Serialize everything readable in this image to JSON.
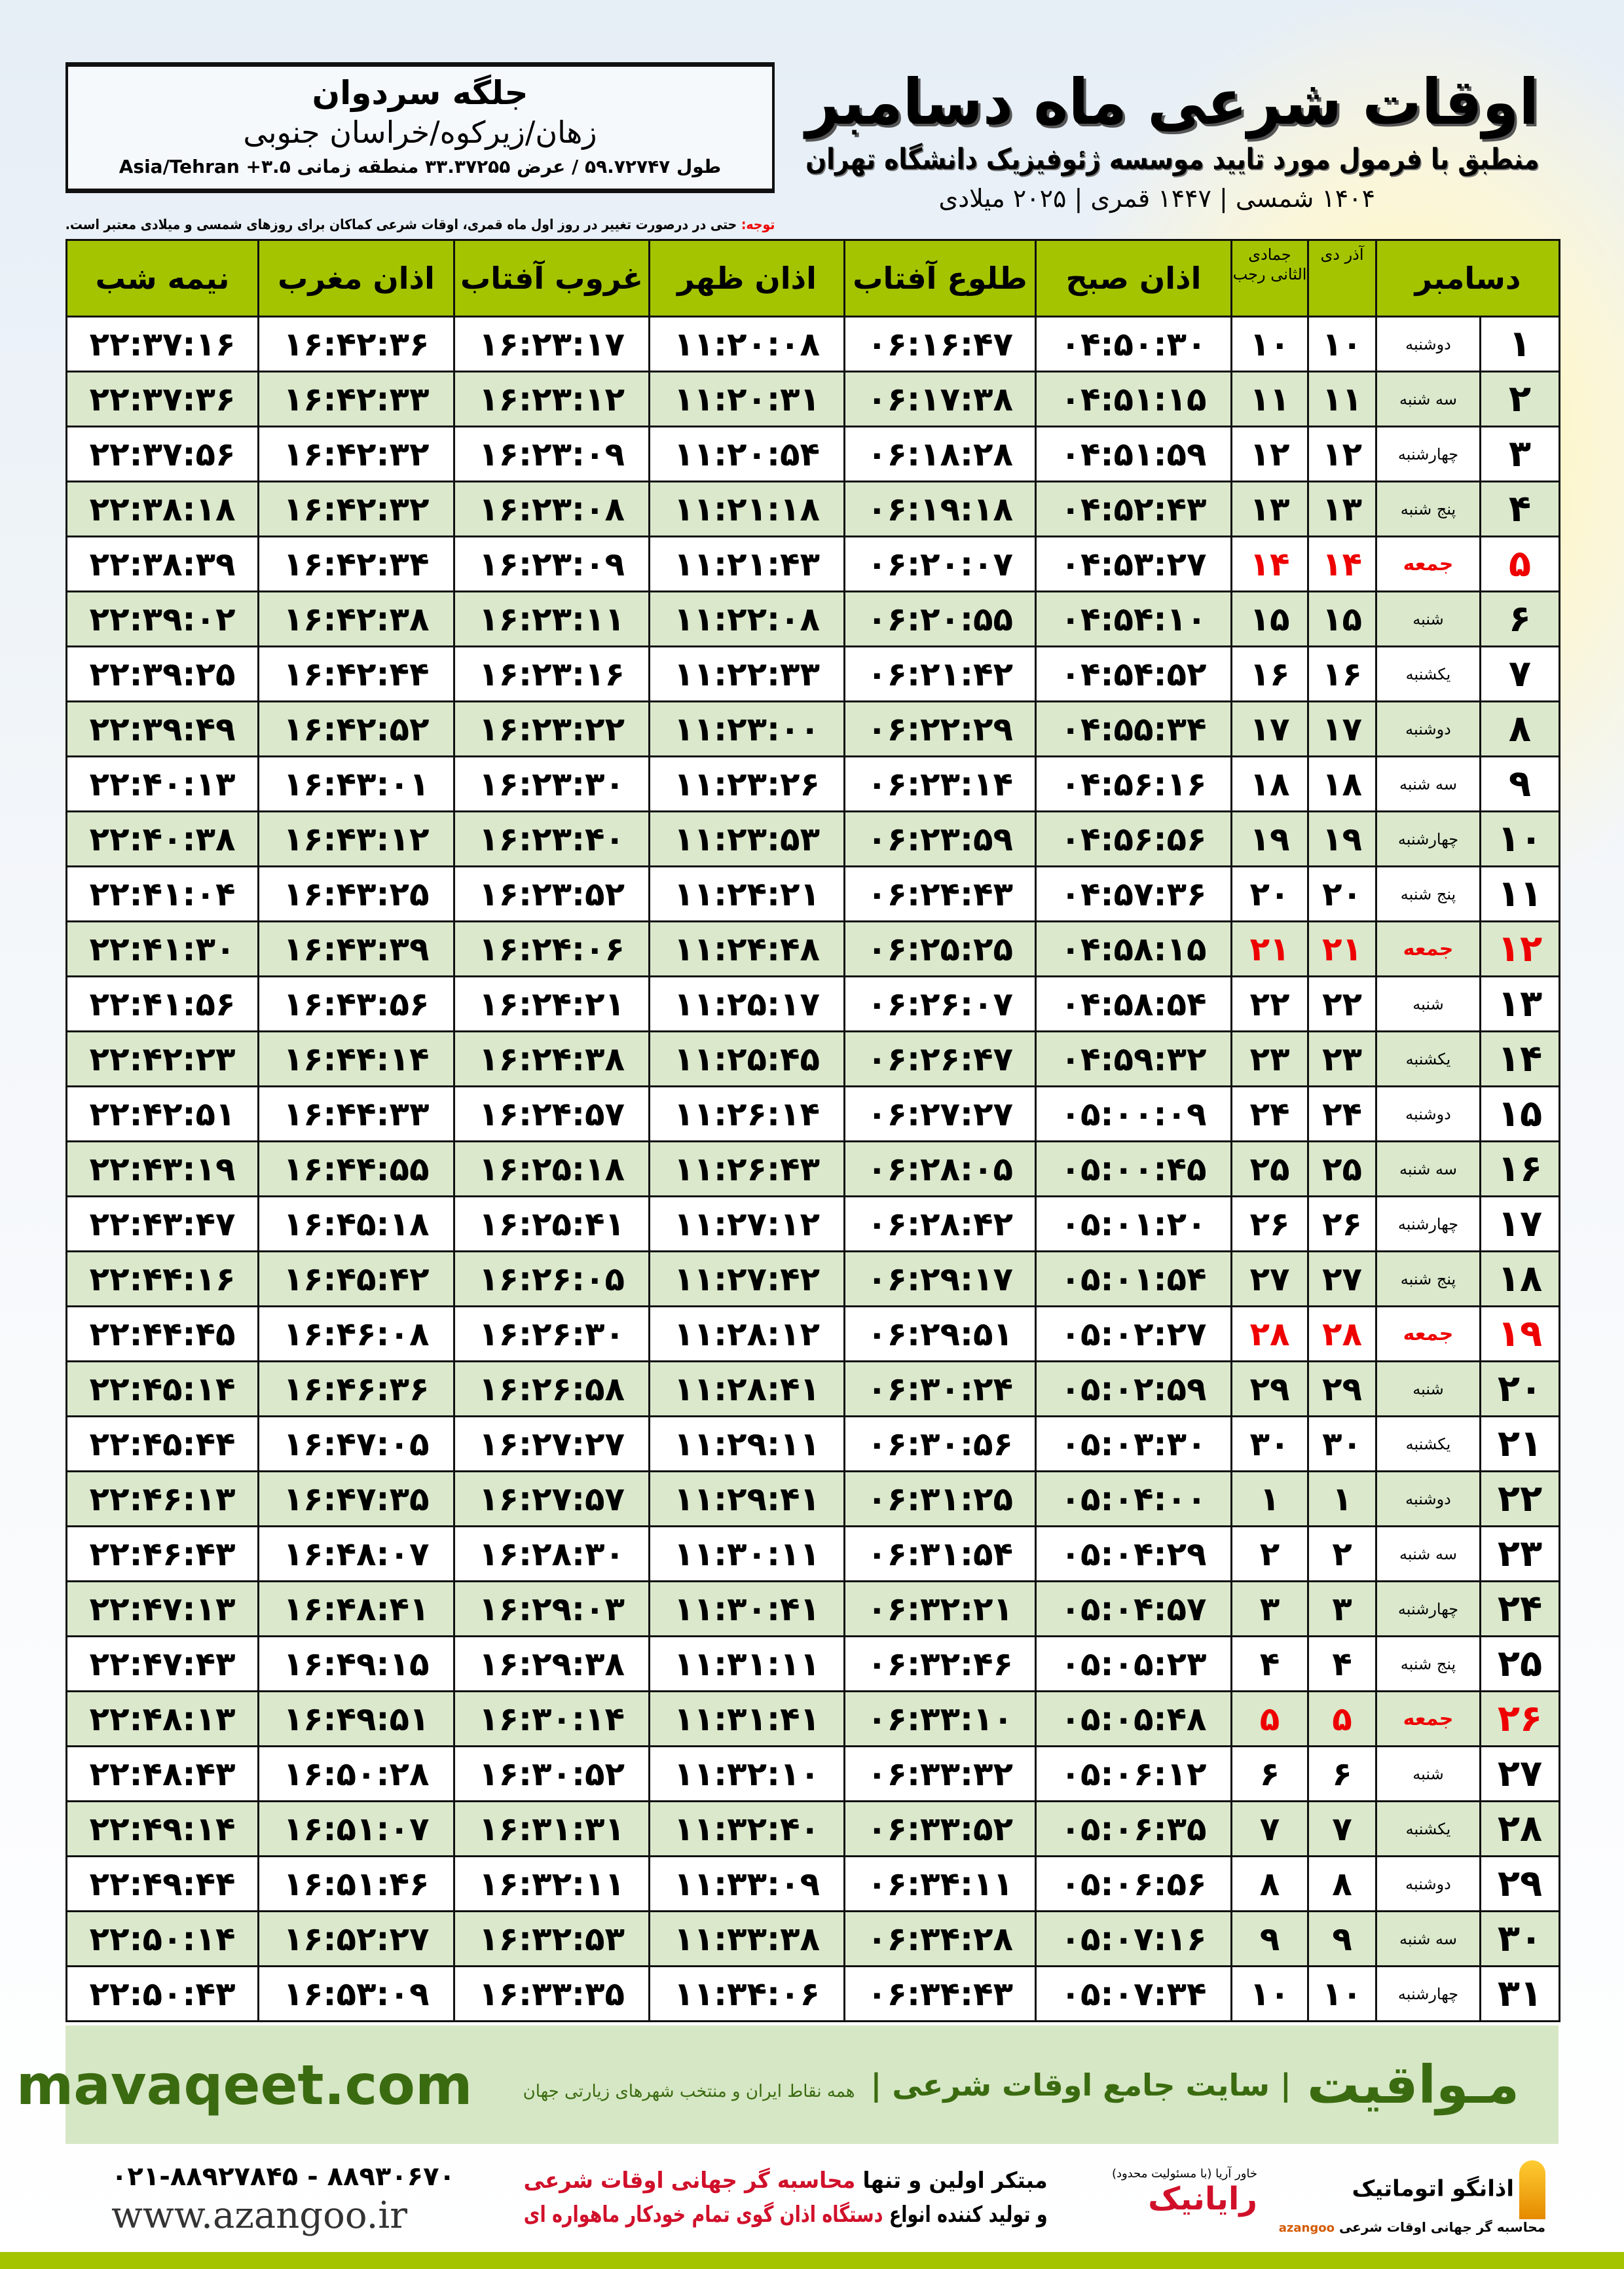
{
  "header": {
    "title": "اوقات شرعی ماه دسامبر",
    "subtitle": "منطبق با فرمول مورد تایید موسسه ژئوفیزیک دانشگاه تهران",
    "years": "۱۴۰۴ شمسی | ۱۴۴۷ قمری | ۲۰۲۵ میلادی"
  },
  "location": {
    "name": "جلگه سردوان",
    "region": "زهان/زیرکوه/خراسان جنوبی",
    "coords": "طول ۵۹.۷۲۷۴۷ / عرض ۳۳.۳۷۲۵۵ منطقه زمانی ۳.۵+ Asia/Tehran"
  },
  "note": {
    "label": "توجه:",
    "text": " حتی در درصورت تغییر در روز اول ماه قمری، اوقات شرعی کماکان برای روزهای شمسی و میلادی معتبر است."
  },
  "colors": {
    "header_green": "#a4c400",
    "row_green": "#dbe8cc",
    "friday_red": "#e00000",
    "brand_green": "#3b6b10"
  },
  "table": {
    "headers": {
      "month": "دسامبر",
      "dey": "آذر دی",
      "rajab": "جمادی الثانی رجب",
      "sobh": "اذان صبح",
      "tolu": "طلوع آفتاب",
      "zohr": "اذان ظهر",
      "ghorub": "غروب آفتاب",
      "maghrib": "اذان مغرب",
      "nimeh": "نیمه شب"
    },
    "rows": [
      [
        "۱",
        "دوشنبه",
        "۱۰",
        "۱۰",
        "۰۴:۵۰:۳۰",
        "۰۶:۱۶:۴۷",
        "۱۱:۲۰:۰۸",
        "۱۶:۲۳:۱۷",
        "۱۶:۴۲:۳۶",
        "۲۲:۳۷:۱۶"
      ],
      [
        "۲",
        "سه شنبه",
        "۱۱",
        "۱۱",
        "۰۴:۵۱:۱۵",
        "۰۶:۱۷:۳۸",
        "۱۱:۲۰:۳۱",
        "۱۶:۲۳:۱۲",
        "۱۶:۴۲:۳۳",
        "۲۲:۳۷:۳۶"
      ],
      [
        "۳",
        "چهارشنبه",
        "۱۲",
        "۱۲",
        "۰۴:۵۱:۵۹",
        "۰۶:۱۸:۲۸",
        "۱۱:۲۰:۵۴",
        "۱۶:۲۳:۰۹",
        "۱۶:۴۲:۳۲",
        "۲۲:۳۷:۵۶"
      ],
      [
        "۴",
        "پنج شنبه",
        "۱۳",
        "۱۳",
        "۰۴:۵۲:۴۳",
        "۰۶:۱۹:۱۸",
        "۱۱:۲۱:۱۸",
        "۱۶:۲۳:۰۸",
        "۱۶:۴۲:۳۲",
        "۲۲:۳۸:۱۸"
      ],
      [
        "۵",
        "جمعه",
        "۱۴",
        "۱۴",
        "۰۴:۵۳:۲۷",
        "۰۶:۲۰:۰۷",
        "۱۱:۲۱:۴۳",
        "۱۶:۲۳:۰۹",
        "۱۶:۴۲:۳۴",
        "۲۲:۳۸:۳۹"
      ],
      [
        "۶",
        "شنبه",
        "۱۵",
        "۱۵",
        "۰۴:۵۴:۱۰",
        "۰۶:۲۰:۵۵",
        "۱۱:۲۲:۰۸",
        "۱۶:۲۳:۱۱",
        "۱۶:۴۲:۳۸",
        "۲۲:۳۹:۰۲"
      ],
      [
        "۷",
        "یکشنبه",
        "۱۶",
        "۱۶",
        "۰۴:۵۴:۵۲",
        "۰۶:۲۱:۴۲",
        "۱۱:۲۲:۳۳",
        "۱۶:۲۳:۱۶",
        "۱۶:۴۲:۴۴",
        "۲۲:۳۹:۲۵"
      ],
      [
        "۸",
        "دوشنبه",
        "۱۷",
        "۱۷",
        "۰۴:۵۵:۳۴",
        "۰۶:۲۲:۲۹",
        "۱۱:۲۳:۰۰",
        "۱۶:۲۳:۲۲",
        "۱۶:۴۲:۵۲",
        "۲۲:۳۹:۴۹"
      ],
      [
        "۹",
        "سه شنبه",
        "۱۸",
        "۱۸",
        "۰۴:۵۶:۱۶",
        "۰۶:۲۳:۱۴",
        "۱۱:۲۳:۲۶",
        "۱۶:۲۳:۳۰",
        "۱۶:۴۳:۰۱",
        "۲۲:۴۰:۱۳"
      ],
      [
        "۱۰",
        "چهارشنبه",
        "۱۹",
        "۱۹",
        "۰۴:۵۶:۵۶",
        "۰۶:۲۳:۵۹",
        "۱۱:۲۳:۵۳",
        "۱۶:۲۳:۴۰",
        "۱۶:۴۳:۱۲",
        "۲۲:۴۰:۳۸"
      ],
      [
        "۱۱",
        "پنج شنبه",
        "۲۰",
        "۲۰",
        "۰۴:۵۷:۳۶",
        "۰۶:۲۴:۴۳",
        "۱۱:۲۴:۲۱",
        "۱۶:۲۳:۵۲",
        "۱۶:۴۳:۲۵",
        "۲۲:۴۱:۰۴"
      ],
      [
        "۱۲",
        "جمعه",
        "۲۱",
        "۲۱",
        "۰۴:۵۸:۱۵",
        "۰۶:۲۵:۲۵",
        "۱۱:۲۴:۴۸",
        "۱۶:۲۴:۰۶",
        "۱۶:۴۳:۳۹",
        "۲۲:۴۱:۳۰"
      ],
      [
        "۱۳",
        "شنبه",
        "۲۲",
        "۲۲",
        "۰۴:۵۸:۵۴",
        "۰۶:۲۶:۰۷",
        "۱۱:۲۵:۱۷",
        "۱۶:۲۴:۲۱",
        "۱۶:۴۳:۵۶",
        "۲۲:۴۱:۵۶"
      ],
      [
        "۱۴",
        "یکشنبه",
        "۲۳",
        "۲۳",
        "۰۴:۵۹:۳۲",
        "۰۶:۲۶:۴۷",
        "۱۱:۲۵:۴۵",
        "۱۶:۲۴:۳۸",
        "۱۶:۴۴:۱۴",
        "۲۲:۴۲:۲۳"
      ],
      [
        "۱۵",
        "دوشنبه",
        "۲۴",
        "۲۴",
        "۰۵:۰۰:۰۹",
        "۰۶:۲۷:۲۷",
        "۱۱:۲۶:۱۴",
        "۱۶:۲۴:۵۷",
        "۱۶:۴۴:۳۳",
        "۲۲:۴۲:۵۱"
      ],
      [
        "۱۶",
        "سه شنبه",
        "۲۵",
        "۲۵",
        "۰۵:۰۰:۴۵",
        "۰۶:۲۸:۰۵",
        "۱۱:۲۶:۴۳",
        "۱۶:۲۵:۱۸",
        "۱۶:۴۴:۵۵",
        "۲۲:۴۳:۱۹"
      ],
      [
        "۱۷",
        "چهارشنبه",
        "۲۶",
        "۲۶",
        "۰۵:۰۱:۲۰",
        "۰۶:۲۸:۴۲",
        "۱۱:۲۷:۱۲",
        "۱۶:۲۵:۴۱",
        "۱۶:۴۵:۱۸",
        "۲۲:۴۳:۴۷"
      ],
      [
        "۱۸",
        "پنج شنبه",
        "۲۷",
        "۲۷",
        "۰۵:۰۱:۵۴",
        "۰۶:۲۹:۱۷",
        "۱۱:۲۷:۴۲",
        "۱۶:۲۶:۰۵",
        "۱۶:۴۵:۴۲",
        "۲۲:۴۴:۱۶"
      ],
      [
        "۱۹",
        "جمعه",
        "۲۸",
        "۲۸",
        "۰۵:۰۲:۲۷",
        "۰۶:۲۹:۵۱",
        "۱۱:۲۸:۱۲",
        "۱۶:۲۶:۳۰",
        "۱۶:۴۶:۰۸",
        "۲۲:۴۴:۴۵"
      ],
      [
        "۲۰",
        "شنبه",
        "۲۹",
        "۲۹",
        "۰۵:۰۲:۵۹",
        "۰۶:۳۰:۲۴",
        "۱۱:۲۸:۴۱",
        "۱۶:۲۶:۵۸",
        "۱۶:۴۶:۳۶",
        "۲۲:۴۵:۱۴"
      ],
      [
        "۲۱",
        "یکشنبه",
        "۳۰",
        "۳۰",
        "۰۵:۰۳:۳۰",
        "۰۶:۳۰:۵۶",
        "۱۱:۲۹:۱۱",
        "۱۶:۲۷:۲۷",
        "۱۶:۴۷:۰۵",
        "۲۲:۴۵:۴۴"
      ],
      [
        "۲۲",
        "دوشنبه",
        "۱",
        "۱",
        "۰۵:۰۴:۰۰",
        "۰۶:۳۱:۲۵",
        "۱۱:۲۹:۴۱",
        "۱۶:۲۷:۵۷",
        "۱۶:۴۷:۳۵",
        "۲۲:۴۶:۱۳"
      ],
      [
        "۲۳",
        "سه شنبه",
        "۲",
        "۲",
        "۰۵:۰۴:۲۹",
        "۰۶:۳۱:۵۴",
        "۱۱:۳۰:۱۱",
        "۱۶:۲۸:۳۰",
        "۱۶:۴۸:۰۷",
        "۲۲:۴۶:۴۳"
      ],
      [
        "۲۴",
        "چهارشنبه",
        "۳",
        "۳",
        "۰۵:۰۴:۵۷",
        "۰۶:۳۲:۲۱",
        "۱۱:۳۰:۴۱",
        "۱۶:۲۹:۰۳",
        "۱۶:۴۸:۴۱",
        "۲۲:۴۷:۱۳"
      ],
      [
        "۲۵",
        "پنج شنبه",
        "۴",
        "۴",
        "۰۵:۰۵:۲۳",
        "۰۶:۳۲:۴۶",
        "۱۱:۳۱:۱۱",
        "۱۶:۲۹:۳۸",
        "۱۶:۴۹:۱۵",
        "۲۲:۴۷:۴۳"
      ],
      [
        "۲۶",
        "جمعه",
        "۵",
        "۵",
        "۰۵:۰۵:۴۸",
        "۰۶:۳۳:۱۰",
        "۱۱:۳۱:۴۱",
        "۱۶:۳۰:۱۴",
        "۱۶:۴۹:۵۱",
        "۲۲:۴۸:۱۳"
      ],
      [
        "۲۷",
        "شنبه",
        "۶",
        "۶",
        "۰۵:۰۶:۱۲",
        "۰۶:۳۳:۳۲",
        "۱۱:۳۲:۱۰",
        "۱۶:۳۰:۵۲",
        "۱۶:۵۰:۲۸",
        "۲۲:۴۸:۴۳"
      ],
      [
        "۲۸",
        "یکشنبه",
        "۷",
        "۷",
        "۰۵:۰۶:۳۵",
        "۰۶:۳۳:۵۲",
        "۱۱:۳۲:۴۰",
        "۱۶:۳۱:۳۱",
        "۱۶:۵۱:۰۷",
        "۲۲:۴۹:۱۴"
      ],
      [
        "۲۹",
        "دوشنبه",
        "۸",
        "۸",
        "۰۵:۰۶:۵۶",
        "۰۶:۳۴:۱۱",
        "۱۱:۳۳:۰۹",
        "۱۶:۳۲:۱۱",
        "۱۶:۵۱:۴۶",
        "۲۲:۴۹:۴۴"
      ],
      [
        "۳۰",
        "سه شنبه",
        "۹",
        "۹",
        "۰۵:۰۷:۱۶",
        "۰۶:۳۴:۲۸",
        "۱۱:۳۳:۳۸",
        "۱۶:۳۲:۵۳",
        "۱۶:۵۲:۲۷",
        "۲۲:۵۰:۱۴"
      ],
      [
        "۳۱",
        "چهارشنبه",
        "۱۰",
        "۱۰",
        "۰۵:۰۷:۳۴",
        "۰۶:۳۴:۴۳",
        "۱۱:۳۴:۰۶",
        "۱۶:۳۳:۳۵",
        "۱۶:۵۳:۰۹",
        "۲۲:۵۰:۴۳"
      ]
    ]
  },
  "footer": {
    "brand": "مـواقیت",
    "slogan": "| سایت جامع اوقات شرعی |",
    "slogan2": "همه نقاط ایران و منتخب شهرهای زیارتی جهان",
    "site": "mavaqeet.com"
  },
  "bottom": {
    "phone": "۰۲۱-۸۸۹۲۷۸۴۵ - ۸۸۹۳۰۶۷۰",
    "www": "www.azangoo.ir",
    "pitch1a": "مبتکر اولین و تنها ",
    "pitch1b": "محاسبه گر جهانی اوقات شرعی",
    "pitch2a": "و تولید کننده انواع ",
    "pitch2b": "دستگاه اذان گوی تمام خودکار ماهواره ای",
    "logo_azangoo": "اذانگو اتوماتیک",
    "logo_azangoo_sub": "محاسبه گر جهانی اوقات شرعی",
    "logo_azangoo_en": "azangoo",
    "logo_rayanik": "رایانیک",
    "logo_rayanik_sub": "خاور آریا (با مسئولیت محدود)"
  }
}
